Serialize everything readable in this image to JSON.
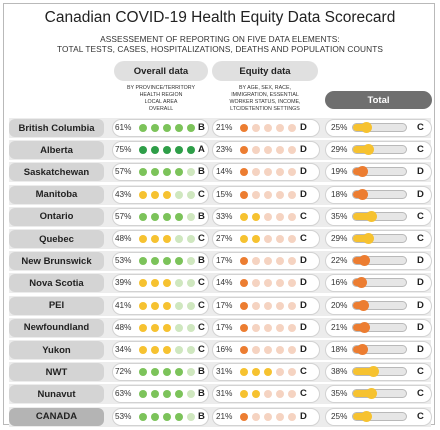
{
  "title": "Canadian COVID-19 Health Equity Data Scorecard",
  "subtitle_line1": "ASSESSEMENT OF REPORTING ON FIVE DATA ELEMENTS:",
  "subtitle_line2": "TOTAL TESTS, CASES, HOSPITALIZATIONS, DEATHS AND POPULATION COUNTS",
  "chart_data": {
    "type": "table",
    "columns": [
      "Overall data",
      "Equity data",
      "Total"
    ],
    "overall_note": [
      "BY PROVINCE/TERRITORY",
      "HEALTH REGION",
      "LOCAL AREA",
      "OVERALL"
    ],
    "equity_note": [
      "BY AGE, SEX, RACE,",
      "IMMIGRATION, ESSENTIAL",
      "WORKER STATUS, INCOME,",
      "LTC/DETENTION SETTINGS"
    ],
    "rows": [
      {
        "name": "British Columbia",
        "overall_pct": "61%",
        "overall_grade": "B",
        "overall_dots": 5,
        "equity_pct": "21%",
        "equity_grade": "D",
        "equity_dots": 1,
        "total_pct": "25%",
        "total_grade": "C",
        "total_value": 25
      },
      {
        "name": "Alberta",
        "overall_pct": "75%",
        "overall_grade": "A",
        "overall_dots": 5,
        "equity_pct": "23%",
        "equity_grade": "D",
        "equity_dots": 1,
        "total_pct": "29%",
        "total_grade": "C",
        "total_value": 29
      },
      {
        "name": "Saskatchewan",
        "overall_pct": "57%",
        "overall_grade": "B",
        "overall_dots": 4,
        "equity_pct": "14%",
        "equity_grade": "D",
        "equity_dots": 1,
        "total_pct": "19%",
        "total_grade": "D",
        "total_value": 19
      },
      {
        "name": "Manitoba",
        "overall_pct": "43%",
        "overall_grade": "C",
        "overall_dots": 3,
        "equity_pct": "15%",
        "equity_grade": "D",
        "equity_dots": 1,
        "total_pct": "18%",
        "total_grade": "D",
        "total_value": 18
      },
      {
        "name": "Ontario",
        "overall_pct": "57%",
        "overall_grade": "B",
        "overall_dots": 4,
        "equity_pct": "33%",
        "equity_grade": "C",
        "equity_dots": 2,
        "total_pct": "35%",
        "total_grade": "C",
        "total_value": 35
      },
      {
        "name": "Quebec",
        "overall_pct": "48%",
        "overall_grade": "C",
        "overall_dots": 3,
        "equity_pct": "27%",
        "equity_grade": "C",
        "equity_dots": 2,
        "total_pct": "29%",
        "total_grade": "C",
        "total_value": 29
      },
      {
        "name": "New Brunswick",
        "overall_pct": "53%",
        "overall_grade": "B",
        "overall_dots": 4,
        "equity_pct": "17%",
        "equity_grade": "D",
        "equity_dots": 1,
        "total_pct": "22%",
        "total_grade": "D",
        "total_value": 22
      },
      {
        "name": "Nova Scotia",
        "overall_pct": "39%",
        "overall_grade": "C",
        "overall_dots": 3,
        "equity_pct": "14%",
        "equity_grade": "D",
        "equity_dots": 1,
        "total_pct": "16%",
        "total_grade": "D",
        "total_value": 16
      },
      {
        "name": "PEI",
        "overall_pct": "41%",
        "overall_grade": "C",
        "overall_dots": 3,
        "equity_pct": "17%",
        "equity_grade": "D",
        "equity_dots": 1,
        "total_pct": "20%",
        "total_grade": "D",
        "total_value": 20
      },
      {
        "name": "Newfoundland",
        "overall_pct": "48%",
        "overall_grade": "C",
        "overall_dots": 3,
        "equity_pct": "17%",
        "equity_grade": "D",
        "equity_dots": 1,
        "total_pct": "21%",
        "total_grade": "D",
        "total_value": 21
      },
      {
        "name": "Yukon",
        "overall_pct": "34%",
        "overall_grade": "C",
        "overall_dots": 3,
        "equity_pct": "16%",
        "equity_grade": "D",
        "equity_dots": 1,
        "total_pct": "18%",
        "total_grade": "D",
        "total_value": 18
      },
      {
        "name": "NWT",
        "overall_pct": "72%",
        "overall_grade": "B",
        "overall_dots": 4,
        "equity_pct": "31%",
        "equity_grade": "C",
        "equity_dots": 3,
        "total_pct": "38%",
        "total_grade": "C",
        "total_value": 38
      },
      {
        "name": "Nunavut",
        "overall_pct": "63%",
        "overall_grade": "B",
        "overall_dots": 4,
        "equity_pct": "31%",
        "equity_grade": "C",
        "equity_dots": 2,
        "total_pct": "35%",
        "total_grade": "C",
        "total_value": 35
      },
      {
        "name": "CANADA",
        "overall_pct": "53%",
        "overall_grade": "B",
        "overall_dots": 4,
        "equity_pct": "21%",
        "equity_grade": "D",
        "equity_dots": 1,
        "total_pct": "25%",
        "total_grade": "C",
        "total_value": 25
      }
    ],
    "grade_colors": {
      "A": "#2e9e48",
      "B": "#7cc35a",
      "C": "#f6c230",
      "D": "#ec7d31"
    },
    "empty_colors": {
      "green": "#cfe7bf",
      "peach": "#f5d3c1"
    },
    "dots_per_rating": 5
  }
}
